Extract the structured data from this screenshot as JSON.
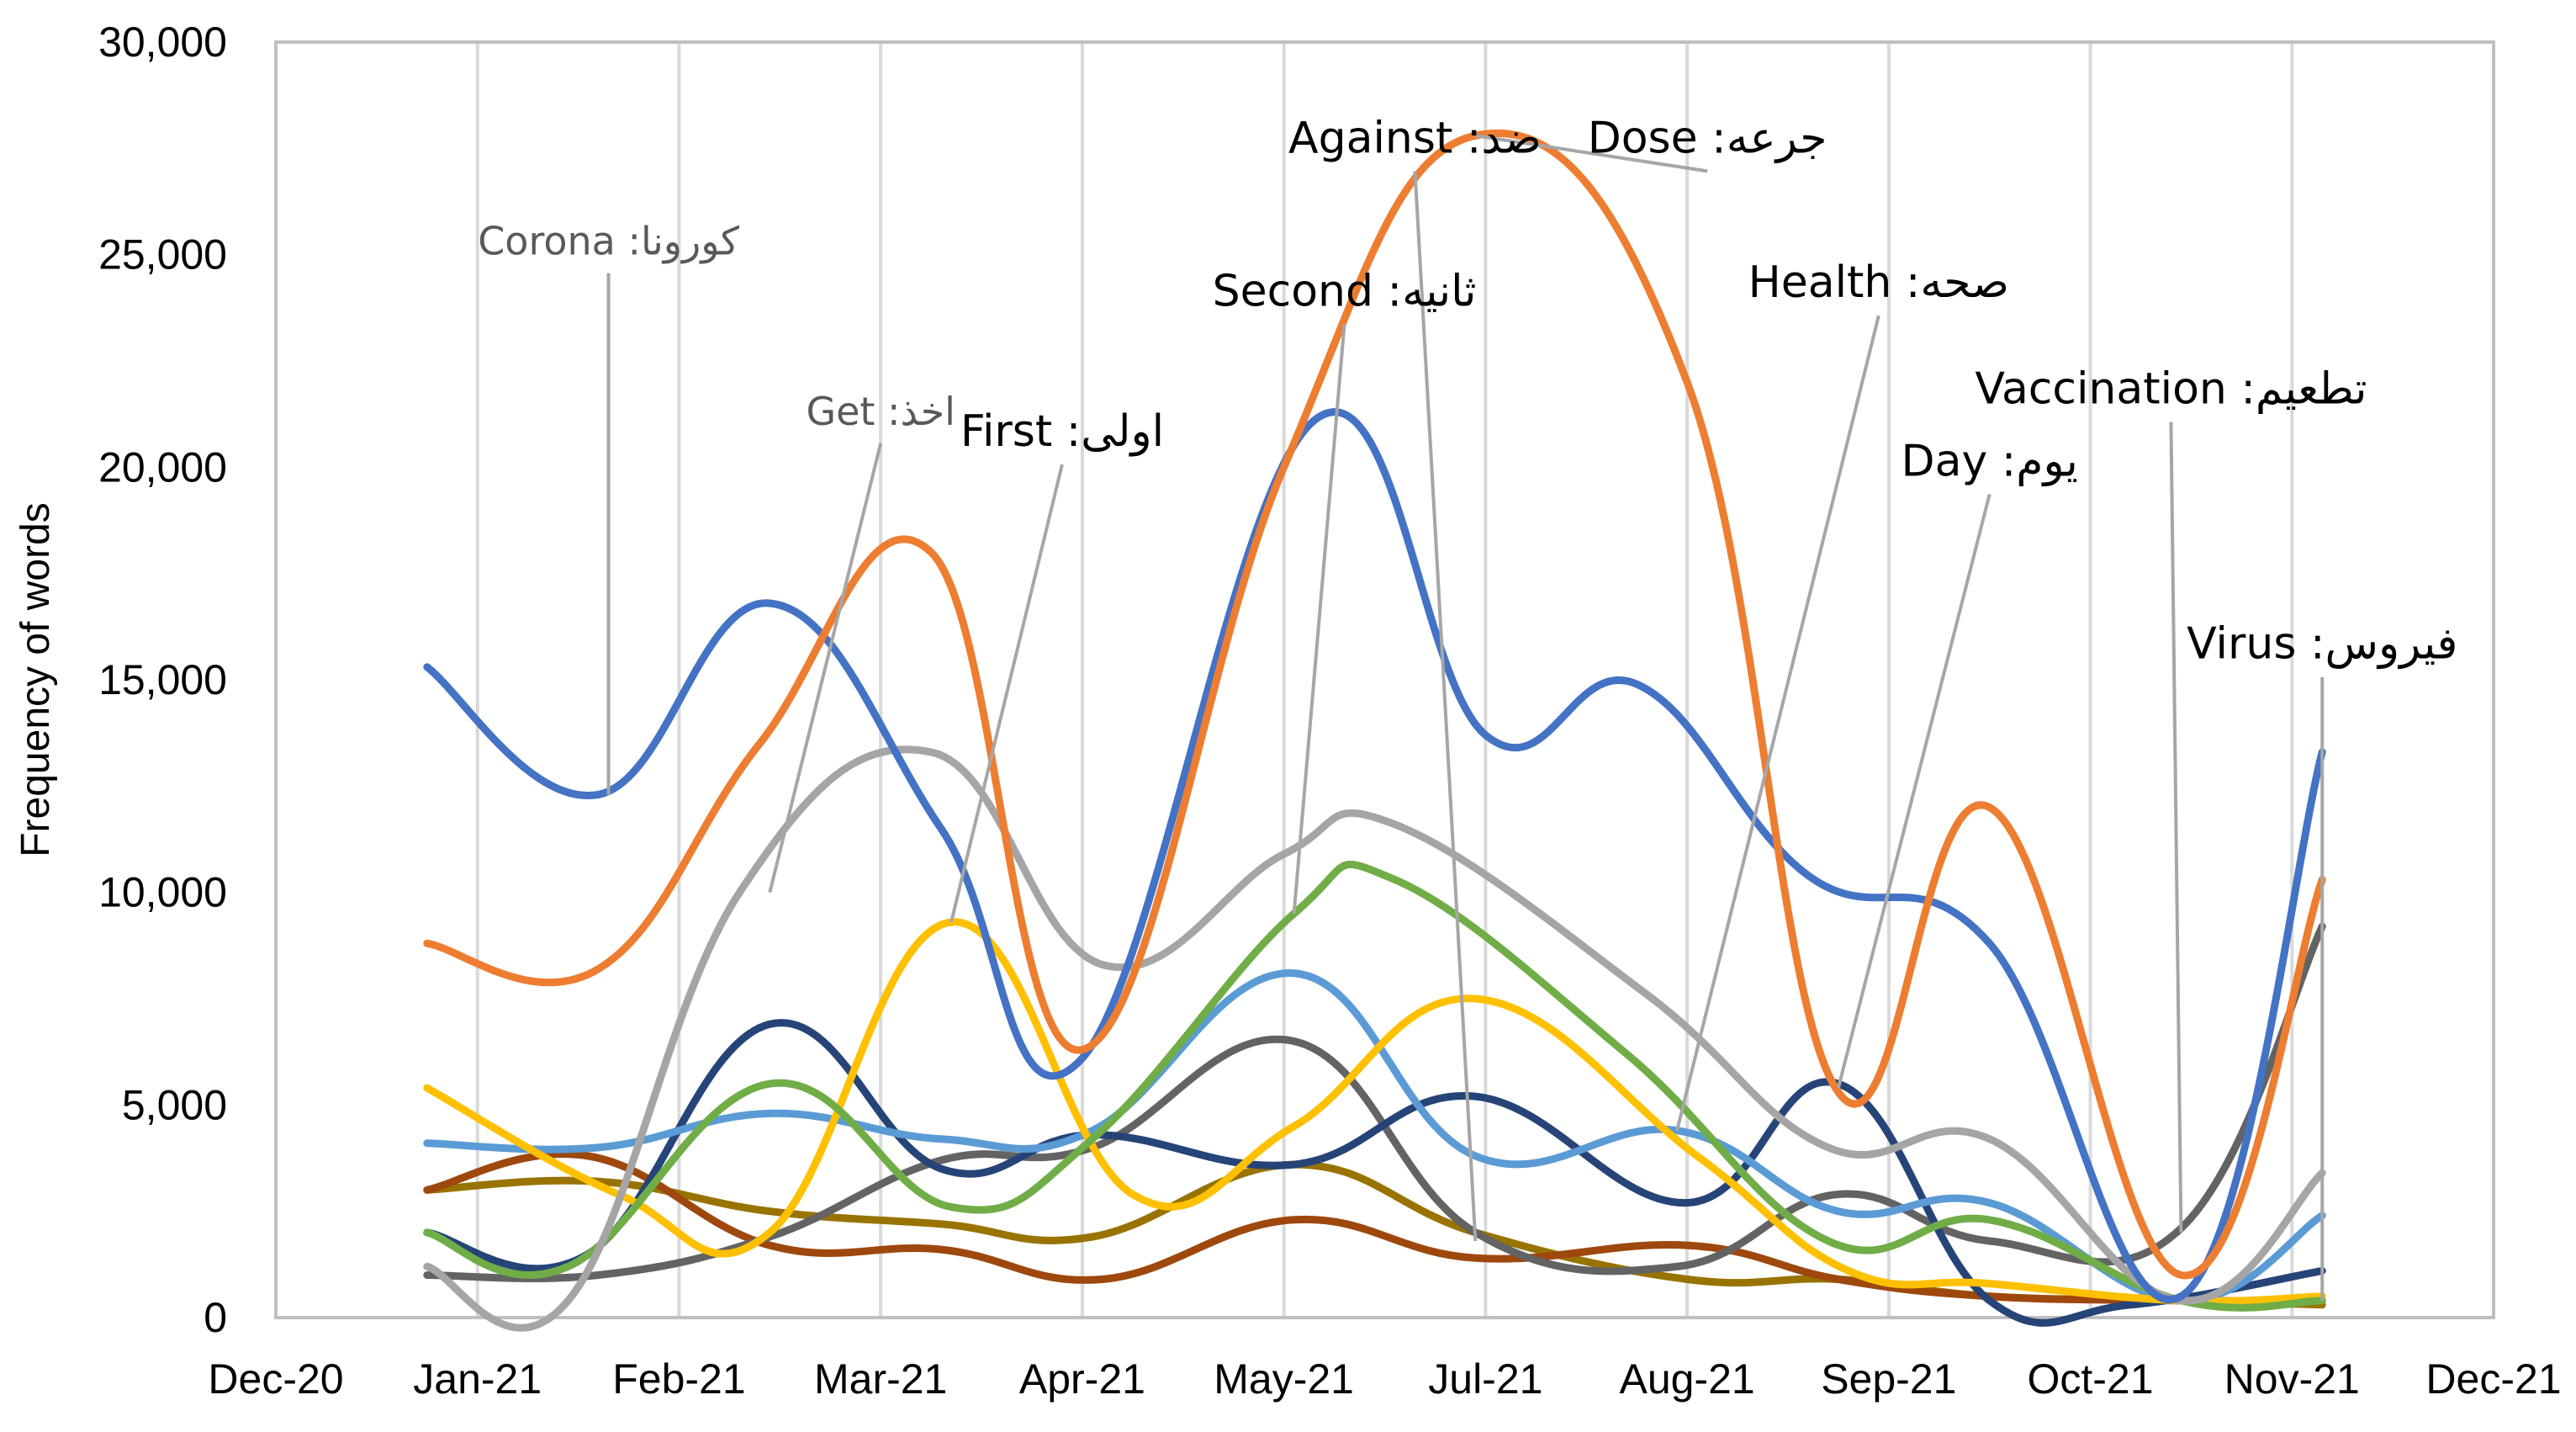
{
  "chart_data": {
    "type": "line",
    "title": "",
    "xlabel": "",
    "ylabel": "Frequency of words",
    "ylim": [
      0,
      30000
    ],
    "xlim": [
      0,
      11
    ],
    "y_ticks": [
      "0",
      "5,000",
      "10,000",
      "15,000",
      "20,000",
      "25,000",
      "30,000"
    ],
    "x_tick_labels": [
      "Dec-20",
      "Jan-21",
      "Feb-21",
      "Mar-21",
      "Apr-21",
      "May-21",
      "Jul-21",
      "Aug-21",
      "Sep-21",
      "Oct-21",
      "Nov-21",
      "Dec-21"
    ],
    "grid": "vertical",
    "legend": "none (inline annotations)",
    "series": [
      {
        "name": "Dose: جرعه",
        "color": "#ED7D31",
        "x": [
          0.75,
          1.6,
          2.4,
          3.25,
          4.0,
          5.0,
          5.95,
          7.0,
          7.75,
          8.5,
          9.45,
          10.15
        ],
        "y": [
          8800,
          8200,
          13500,
          18000,
          6300,
          20000,
          27800,
          22000,
          5300,
          12000,
          1000,
          10300
        ]
      },
      {
        "name": "Corona: كورونا",
        "color": "#4472C4",
        "x": [
          0.75,
          1.6,
          2.45,
          3.3,
          4.0,
          5.15,
          6.0,
          6.75,
          7.6,
          8.5,
          9.45,
          10.15
        ],
        "y": [
          15300,
          12300,
          16800,
          11500,
          6100,
          21100,
          13700,
          14900,
          10400,
          8800,
          500,
          13300
        ]
      },
      {
        "name": "Get: اخذ",
        "color": "#A5A5A5",
        "x": [
          0.75,
          1.45,
          2.3,
          3.25,
          4.1,
          5.0,
          5.55,
          6.8,
          7.7,
          8.5,
          9.45,
          10.15
        ],
        "y": [
          1200,
          400,
          10000,
          13300,
          8300,
          10900,
          11600,
          7600,
          4000,
          4200,
          400,
          3400
        ]
      },
      {
        "name": "Second: ثانيه",
        "color": "#70AD47",
        "x": [
          0.75,
          1.45,
          2.45,
          3.35,
          4.05,
          5.05,
          5.55,
          6.7,
          7.7,
          8.5,
          9.45,
          10.15
        ],
        "y": [
          2000,
          1200,
          5500,
          2600,
          4200,
          9500,
          10300,
          6200,
          1800,
          2300,
          400,
          400
        ]
      },
      {
        "name": "First: اولى",
        "color": "#FFC000",
        "x": [
          0.75,
          1.7,
          2.45,
          3.35,
          4.25,
          5.05,
          5.95,
          7.05,
          7.8,
          8.5,
          9.45,
          10.15
        ],
        "y": [
          5400,
          2900,
          2000,
          9300,
          2900,
          4500,
          7500,
          3800,
          1100,
          800,
          400,
          500
        ]
      },
      {
        "name": "Health: صحه",
        "color": "#5B9BD5",
        "x": [
          0.75,
          1.6,
          2.45,
          3.3,
          4.05,
          5.05,
          5.95,
          6.95,
          7.75,
          8.5,
          9.45,
          10.15
        ],
        "y": [
          4100,
          4000,
          4800,
          4200,
          4400,
          8100,
          3800,
          4400,
          2500,
          2700,
          400,
          2400
        ]
      },
      {
        "name": "Day: يوم",
        "color": "#264478",
        "x": [
          0.75,
          1.55,
          2.45,
          3.3,
          4.05,
          5.05,
          5.95,
          7.0,
          7.75,
          8.5,
          9.2,
          10.15
        ],
        "y": [
          2000,
          1500,
          6900,
          3500,
          4300,
          3600,
          5200,
          2700,
          5500,
          400,
          300,
          1100
        ]
      },
      {
        "name": "Vaccination: تطعيم",
        "color": "#636363",
        "x": [
          0.75,
          1.6,
          2.45,
          3.3,
          4.05,
          5.05,
          5.95,
          6.95,
          7.75,
          8.5,
          9.45,
          10.15
        ],
        "y": [
          1000,
          1000,
          1900,
          3700,
          4000,
          6500,
          2000,
          1200,
          2900,
          1800,
          2100,
          9200
        ]
      },
      {
        "name": "Against: ضد",
        "color": "#9E480E",
        "x": [
          0.75,
          1.55,
          2.45,
          3.3,
          4.1,
          5.05,
          5.95,
          7.0,
          7.75,
          8.5,
          9.45,
          10.15
        ],
        "y": [
          3000,
          3800,
          1700,
          1600,
          900,
          2300,
          1400,
          1700,
          900,
          500,
          400,
          400
        ]
      },
      {
        "name": "Virus: فيروس",
        "color": "#997300",
        "x": [
          0.75,
          1.6,
          2.45,
          3.3,
          4.05,
          5.05,
          5.95,
          7.0,
          7.75,
          8.5,
          9.45,
          10.15
        ],
        "y": [
          3000,
          3200,
          2500,
          2200,
          1900,
          3600,
          2000,
          900,
          900,
          500,
          400,
          300
        ]
      }
    ],
    "annotations": [
      {
        "text": "Corona :كورونا",
        "x": 1.65,
        "y": 25000,
        "target_x": 1.65,
        "target_y": 12300
      },
      {
        "text": "Get :اخذ",
        "x": 3.0,
        "y": 21000,
        "target_x": 2.45,
        "target_y": 10000
      },
      {
        "text": "First :اولى",
        "x": 3.9,
        "y": 20500,
        "target_x": 3.35,
        "target_y": 9300
      },
      {
        "text": "Second :ثانيه",
        "x": 5.3,
        "y": 23800,
        "target_x": 5.05,
        "target_y": 9500
      },
      {
        "text": "Against :ضد",
        "x": 5.65,
        "y": 27400,
        "target_x": 5.95,
        "target_y": 1800
      },
      {
        "text": "Dose :جرعه",
        "x": 7.1,
        "y": 27400,
        "target_x": 5.95,
        "target_y": 27800
      },
      {
        "text": "Health :صحه",
        "x": 7.95,
        "y": 24000,
        "target_x": 6.95,
        "target_y": 4400
      },
      {
        "text": "Day :يوم",
        "x": 8.5,
        "y": 19800,
        "target_x": 7.75,
        "target_y": 5400
      },
      {
        "text": "Vaccination :تطعيم",
        "x": 9.4,
        "y": 21500,
        "target_x": 9.45,
        "target_y": 2000
      },
      {
        "text": "Virus :فيروس",
        "x": 10.15,
        "y": 15500,
        "target_x": 10.15,
        "target_y": 400
      }
    ]
  }
}
